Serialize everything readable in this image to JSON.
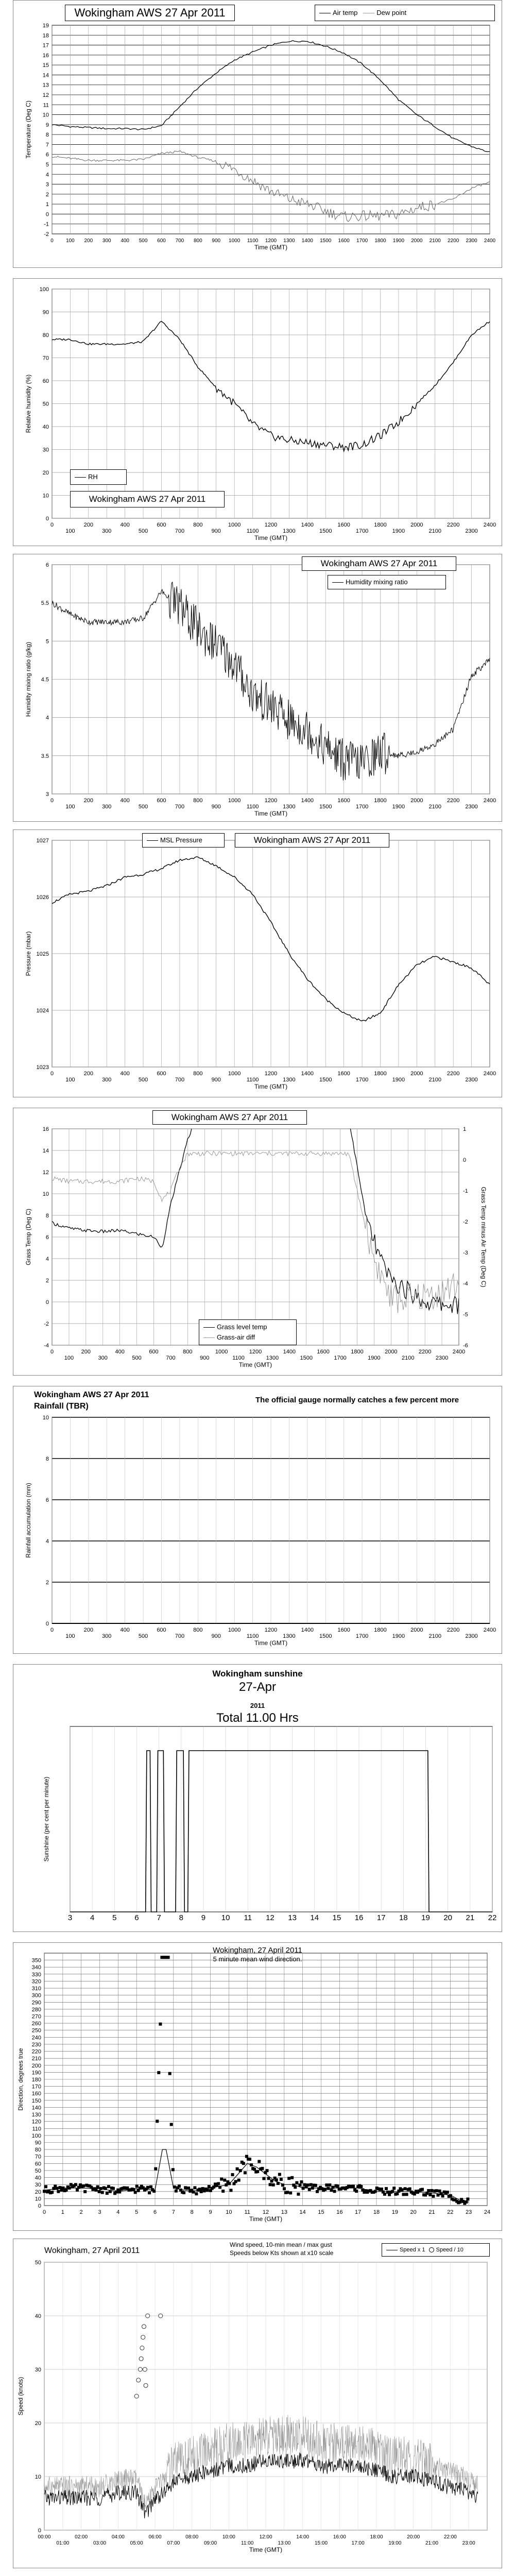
{
  "charts": {
    "temp": {
      "title": "Wokingham AWS 27 Apr 2011",
      "legend": [
        "Air temp",
        "Dew point"
      ],
      "ylabel": "Temperature (Deg C)"
    },
    "rh": {
      "title": "Wokingham AWS 27 Apr 2011",
      "legend": [
        "RH"
      ],
      "ylabel": "Relative humidity (%)"
    },
    "mix": {
      "title": "Wokingham AWS 27 Apr 2011",
      "legend": [
        "Humidity mixing ratio"
      ],
      "ylabel": "Humidity mixing ratio (g/kg)"
    },
    "pres": {
      "title": "Wokingham AWS 27 Apr 2011",
      "legend": [
        "MSL Pressure"
      ],
      "ylabel": "Pressure (mbar)"
    },
    "grass": {
      "title": "Wokingham AWS 27 Apr 2011",
      "legend": [
        "Grass level temp",
        "Grass-air diff"
      ],
      "ylabel": "Grass Temp (Deg C)",
      "y2label": "Grass Temp minus Air Temp (Deg C)"
    },
    "rain": {
      "title": "Wokingham AWS 27 Apr 2011",
      "subtitle": "Rainfall (TBR)",
      "note": "The official gauge normally catches a few percent more",
      "ylabel": "Rainfall accumulation (mm)"
    },
    "sun": {
      "title": "Wokingham sunshine",
      "date": "27-Apr",
      "year": "2011",
      "total": "Total 11.00 Hrs",
      "ylabel": "Sunshine (per cent per minute)"
    },
    "dir": {
      "title": "Wokingham,  27 April 2011",
      "subtitle": "5 minute mean wind direction.",
      "ylabel": "Direction, degrees true",
      "xlabel": "Time (GMT)"
    },
    "wind": {
      "title": "Wokingham,  27 April 2011",
      "subtitle": "Wind speed, 10-min mean / max gust",
      "subtitle2": "Speeds below Kts shown at x10 scale",
      "legend": [
        "Speed x 1",
        "Speed / 10"
      ],
      "ylabel": "Speed (knots)",
      "xlabel": "Time (GMT)"
    }
  },
  "chart_data": [
    {
      "type": "line",
      "title": "Wokingham AWS 27 Apr 2011",
      "xlabel": "Time (GMT)",
      "ylabel": "Temperature (Deg C)",
      "xlim": [
        0,
        2400
      ],
      "ylim": [
        -2,
        19
      ],
      "series": [
        {
          "name": "Air temp",
          "x": [
            0,
            100,
            200,
            300,
            400,
            500,
            600,
            700,
            800,
            900,
            1000,
            1100,
            1200,
            1300,
            1400,
            1500,
            1600,
            1700,
            1800,
            1900,
            2000,
            2100,
            2200,
            2300,
            2400
          ],
          "values": [
            9.0,
            8.8,
            8.7,
            8.6,
            8.6,
            8.5,
            8.9,
            10.8,
            12.7,
            14.2,
            15.5,
            16.3,
            17.0,
            17.4,
            17.4,
            16.9,
            16.2,
            15.1,
            13.5,
            11.5,
            10.0,
            8.8,
            7.6,
            6.8,
            6.2
          ]
        },
        {
          "name": "Dew point",
          "x": [
            0,
            100,
            200,
            300,
            400,
            500,
            600,
            700,
            800,
            900,
            1000,
            1100,
            1200,
            1300,
            1400,
            1500,
            1600,
            1700,
            1800,
            1900,
            2000,
            2100,
            2200,
            2300,
            2400
          ],
          "values": [
            5.8,
            5.6,
            5.4,
            5.4,
            5.4,
            5.5,
            6.1,
            6.3,
            5.7,
            5.3,
            4.5,
            3.4,
            2.3,
            1.5,
            1.0,
            0.3,
            -0.3,
            -0.2,
            -0.2,
            0.0,
            0.6,
            1.0,
            1.5,
            2.6,
            3.2
          ]
        }
      ]
    },
    {
      "type": "line",
      "title": "Wokingham AWS 27 Apr 2011",
      "xlabel": "Time (GMT)",
      "ylabel": "Relative humidity (%)",
      "xlim": [
        0,
        2400
      ],
      "ylim": [
        0,
        100
      ],
      "series": [
        {
          "name": "RH",
          "x": [
            0,
            100,
            200,
            300,
            400,
            500,
            600,
            700,
            800,
            900,
            1000,
            1100,
            1200,
            1300,
            1400,
            1500,
            1600,
            1700,
            1800,
            1900,
            2000,
            2100,
            2200,
            2300,
            2400
          ],
          "values": [
            78,
            78,
            76,
            76,
            76,
            77,
            86,
            78,
            66,
            57,
            50,
            41,
            36,
            34,
            33,
            32,
            31,
            32,
            36,
            42,
            50,
            58,
            68,
            80,
            86
          ]
        }
      ]
    },
    {
      "type": "line",
      "title": "Wokingham AWS 27 Apr 2011",
      "xlabel": "Time (GMT)",
      "ylabel": "Humidity mixing ratio (g/kg)",
      "xlim": [
        0,
        2400
      ],
      "ylim": [
        3,
        6
      ],
      "series": [
        {
          "name": "Humidity mixing ratio",
          "x": [
            0,
            100,
            200,
            300,
            400,
            500,
            600,
            700,
            800,
            900,
            1000,
            1100,
            1200,
            1300,
            1400,
            1500,
            1600,
            1700,
            1800,
            1900,
            2000,
            2100,
            2200,
            2300,
            2400
          ],
          "values": [
            5.5,
            5.35,
            5.25,
            5.25,
            5.25,
            5.3,
            5.65,
            5.45,
            5.15,
            4.95,
            4.7,
            4.3,
            4.15,
            3.95,
            3.85,
            3.6,
            3.45,
            3.4,
            3.55,
            3.5,
            3.55,
            3.65,
            3.85,
            4.55,
            4.75
          ]
        }
      ]
    },
    {
      "type": "line",
      "title": "Wokingham AWS 27 Apr 2011",
      "xlabel": "Time (GMT)",
      "ylabel": "Pressure (mbar)",
      "xlim": [
        0,
        2400
      ],
      "ylim": [
        1023,
        1027
      ],
      "series": [
        {
          "name": "MSL Pressure",
          "x": [
            0,
            100,
            200,
            300,
            400,
            500,
            600,
            700,
            800,
            900,
            1000,
            1100,
            1200,
            1300,
            1400,
            1500,
            1600,
            1700,
            1800,
            1900,
            2000,
            2100,
            2200,
            2300,
            2400
          ],
          "values": [
            1025.9,
            1026.05,
            1026.1,
            1026.2,
            1026.35,
            1026.4,
            1026.5,
            1026.65,
            1026.7,
            1026.55,
            1026.35,
            1026.05,
            1025.55,
            1025.0,
            1024.55,
            1024.2,
            1023.95,
            1023.8,
            1023.95,
            1024.45,
            1024.8,
            1024.95,
            1024.85,
            1024.75,
            1024.45
          ]
        }
      ]
    },
    {
      "type": "line",
      "title": "Wokingham AWS 27 Apr 2011",
      "xlabel": "Time (GMT)",
      "ylabel": "Grass Temp (Deg C)",
      "y2label": "Grass Temp minus Air Temp (Deg C)",
      "xlim": [
        0,
        2400
      ],
      "ylim": [
        -4,
        16
      ],
      "y2lim": [
        -6,
        1
      ],
      "series": [
        {
          "name": "Grass level temp",
          "x": [
            0,
            100,
            200,
            300,
            400,
            500,
            600,
            650,
            700,
            750,
            800,
            850,
            1750,
            1800,
            1850,
            1900,
            1950,
            2000,
            2100,
            2200,
            2300,
            2400
          ],
          "values": [
            7.3,
            6.8,
            6.6,
            6.5,
            6.6,
            6.3,
            6.0,
            5.0,
            9.0,
            12.0,
            15.0,
            17.0,
            17.0,
            12.5,
            8.0,
            5.5,
            3.5,
            2.0,
            1.0,
            0.0,
            -0.2,
            -0.3
          ],
          "axis": "left"
        },
        {
          "name": "Grass-air diff",
          "x": [
            0,
            100,
            200,
            300,
            400,
            500,
            600,
            650,
            700,
            750,
            800,
            1750,
            1800,
            1850,
            1900,
            2000,
            2100,
            2200,
            2300,
            2400
          ],
          "values": [
            -0.6,
            -0.7,
            -0.7,
            -0.7,
            -0.7,
            -0.6,
            -0.7,
            -1.3,
            -1.0,
            -0.3,
            0.2,
            0.2,
            -1.0,
            -2.2,
            -3.2,
            -4.5,
            -4.5,
            -4.4,
            -4.3,
            -4.0
          ],
          "axis": "right"
        }
      ]
    },
    {
      "type": "line",
      "title": "Wokingham AWS 27 Apr 2011",
      "subtitle": "Rainfall (TBR)",
      "xlabel": "Time (GMT)",
      "ylabel": "Rainfall accumulation (mm)",
      "xlim": [
        0,
        2400
      ],
      "ylim": [
        0,
        10
      ],
      "series": [
        {
          "name": "Rainfall",
          "x": [
            0,
            2400
          ],
          "values": [
            0,
            0
          ]
        }
      ]
    },
    {
      "type": "line",
      "title": "Wokingham sunshine",
      "subtitle": "27-Apr",
      "xlabel": "",
      "ylabel": "Sunshine (per cent per minute)",
      "xlim": [
        3,
        22
      ],
      "ylim": [
        0,
        100
      ],
      "total": "Total 11.00 Hrs",
      "series": [
        {
          "name": "Sunshine",
          "x": [
            3,
            6.4,
            6.45,
            6.6,
            6.65,
            6.9,
            6.95,
            7.2,
            7.25,
            7.75,
            7.8,
            8.1,
            8.15,
            8.3,
            8.35,
            8.75,
            8.8,
            19.1,
            19.15,
            22
          ],
          "values": [
            0,
            0,
            100,
            100,
            0,
            0,
            100,
            100,
            0,
            0,
            100,
            100,
            0,
            0,
            100,
            100,
            100,
            100,
            0,
            0
          ]
        }
      ]
    },
    {
      "type": "scatter",
      "title": "Wokingham,  27 April 2011",
      "subtitle": "5 minute mean wind direction.",
      "xlabel": "Time (GMT)",
      "ylabel": "Direction, degrees true",
      "xlim": [
        0,
        24
      ],
      "ylim": [
        0,
        360
      ],
      "series": [
        {
          "name": "Direction",
          "x": [
            0,
            1,
            2,
            3,
            4,
            5,
            6,
            6.4,
            6.6,
            7,
            8,
            9,
            10,
            10.5,
            11,
            11.5,
            12,
            12.5,
            13,
            13.5,
            14,
            15,
            16,
            17,
            18,
            19,
            20,
            21,
            22,
            22.5,
            23
          ],
          "values": [
            22,
            25,
            25,
            24,
            20,
            24,
            22,
            355,
            354,
            25,
            20,
            25,
            30,
            45,
            60,
            55,
            45,
            35,
            30,
            30,
            25,
            25,
            25,
            25,
            20,
            20,
            20,
            18,
            15,
            8,
            5
          ]
        }
      ]
    },
    {
      "type": "line",
      "title": "Wokingham,  27 April 2011",
      "subtitle": "Wind speed, 10-min mean / max gust",
      "xlabel": "Time (GMT)",
      "ylabel": "Speed (knots)",
      "xlim": [
        0,
        24
      ],
      "ylim": [
        0,
        50
      ],
      "series": [
        {
          "name": "Speed x 1",
          "x": [
            0,
            1,
            2,
            3,
            4,
            5,
            5.5,
            6,
            6.5,
            7,
            8,
            9,
            10,
            11,
            12,
            13,
            14,
            15,
            16,
            17,
            18,
            19,
            20,
            21,
            22,
            23,
            23.5
          ],
          "values": [
            6,
            6,
            6,
            6,
            7,
            7,
            3,
            6,
            7,
            9,
            10,
            11,
            12,
            12,
            13,
            13,
            13,
            12,
            12,
            12,
            11,
            10,
            10,
            9,
            8,
            7,
            6
          ]
        },
        {
          "name": "Speed / 10",
          "x": [
            5.0,
            5.1,
            5.2,
            5.25,
            5.3,
            5.35,
            5.4,
            5.45,
            5.5,
            5.6,
            6.3
          ],
          "values": [
            25,
            28,
            30,
            32,
            34,
            36,
            38,
            30,
            27,
            40,
            40
          ]
        }
      ]
    }
  ]
}
